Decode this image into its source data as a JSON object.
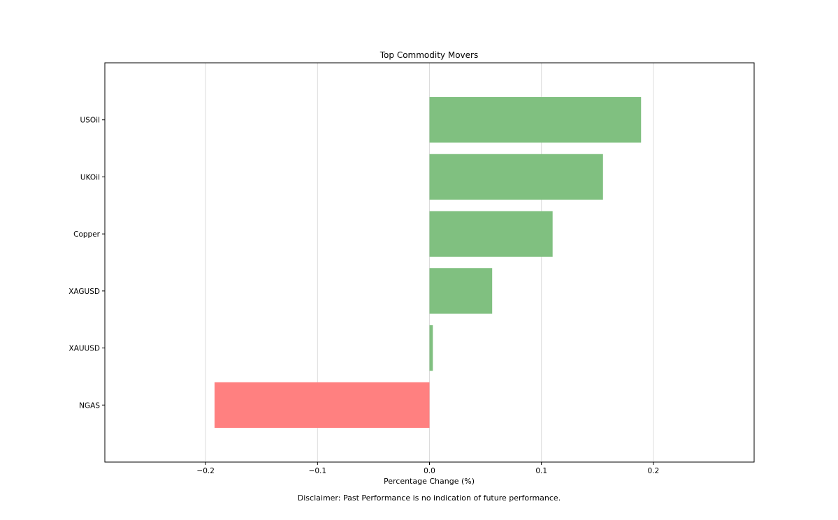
{
  "chart_data": {
    "type": "bar",
    "orientation": "horizontal",
    "title": "Top Commodity Movers",
    "xlabel": "Percentage Change (%)",
    "ylabel": "",
    "categories": [
      "USOil",
      "UKOil",
      "Copper",
      "XAGUSD",
      "XAUUSD",
      "NGAS"
    ],
    "values": [
      0.189,
      0.155,
      0.11,
      0.056,
      0.003,
      -0.192
    ],
    "xlim": [
      -0.29,
      0.29
    ],
    "xticks": [
      -0.2,
      -0.1,
      0.0,
      0.1,
      0.2
    ],
    "xtick_labels": [
      "−0.2",
      "−0.1",
      "0.0",
      "0.1",
      "0.2"
    ],
    "grid": "vertical",
    "colors": {
      "positive": "#80c080",
      "negative": "#ff8080",
      "grid": "#dcdcdc",
      "axes": "#000000"
    },
    "footnote": "Disclaimer: Past Performance is no indication of future performance."
  }
}
